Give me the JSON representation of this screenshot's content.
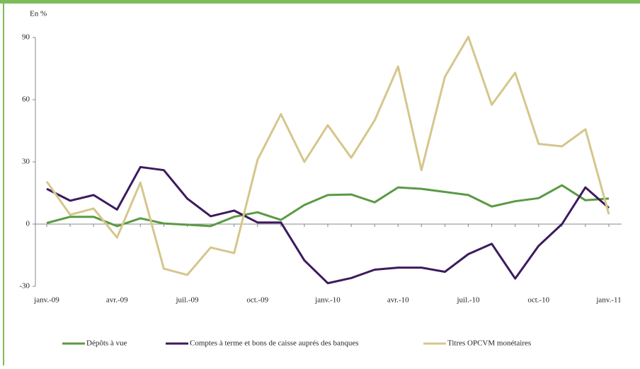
{
  "chart_data": {
    "type": "line",
    "y_label": "En %",
    "categories": [
      "janv.-09",
      null,
      null,
      "avr.-09",
      null,
      null,
      "juil.-09",
      null,
      null,
      "oct.-09",
      null,
      null,
      "janv.-10",
      null,
      null,
      "avr.-10",
      null,
      null,
      "juil.-10",
      null,
      null,
      "oct.-10",
      null,
      null,
      "janv.-11"
    ],
    "series": [
      {
        "name": "Dépôts à vue",
        "color": "#5a9a44",
        "values": [
          0.5,
          3.5,
          3.5,
          -1,
          2.8,
          0.3,
          -0.3,
          -1,
          3.5,
          5.7,
          2,
          9.2,
          14,
          14.3,
          10.5,
          17.7,
          17,
          15.5,
          14,
          8.5,
          11,
          12.5,
          18.7,
          11.5,
          12.3
        ]
      },
      {
        "name": "Comptes à terme et bons de caisse auprés des banques",
        "color": "#3e1a5e",
        "values": [
          17,
          11.3,
          14,
          7,
          27.5,
          26,
          12.3,
          3.8,
          6.5,
          0.8,
          0.8,
          -17.5,
          -28.5,
          -26,
          -22,
          -21,
          -21,
          -23,
          -14.5,
          -9.5,
          -26.3,
          -10.5,
          0,
          17.7,
          7.8
        ]
      },
      {
        "name": "Titres OPCVM monétaires",
        "color": "#d5c68b",
        "values": [
          20.5,
          4.5,
          7.5,
          -6.5,
          20,
          -21.5,
          -24.5,
          -11.3,
          -14,
          31,
          53,
          30,
          47.7,
          32,
          50,
          76,
          26,
          71,
          90.3,
          57.5,
          73,
          38.7,
          37.5,
          45.7,
          4.7
        ]
      }
    ],
    "ylim": [
      -30,
      90
    ],
    "yticks": [
      -30,
      0,
      30,
      60,
      90
    ],
    "legend": "bottom"
  }
}
